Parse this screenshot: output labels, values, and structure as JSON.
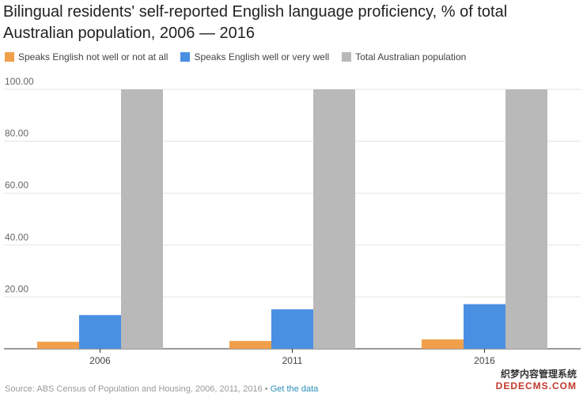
{
  "chart_data": {
    "type": "bar",
    "title": "Bilingual residents' self-reported English language proficiency, % of total Australian population, 2006 — 2016",
    "categories": [
      "2006",
      "2011",
      "2016"
    ],
    "series": [
      {
        "name": "Speaks English not well or not at all",
        "color": "#f0a04b",
        "values": [
          2.7,
          3.0,
          3.6
        ]
      },
      {
        "name": "Speaks English well or very well",
        "color": "#4a90e2",
        "values": [
          13.0,
          15.2,
          17.2
        ]
      },
      {
        "name": "Total Australian population",
        "color": "#b9b9b9",
        "values": [
          100,
          100,
          100
        ]
      }
    ],
    "ylim": [
      0,
      100
    ],
    "yticks": [
      "20.00",
      "40.00",
      "60.00",
      "80.00",
      "100.00"
    ],
    "ytick_values": [
      20,
      40,
      60,
      80,
      100
    ],
    "grid": true,
    "legend_position": "top-left",
    "xlabel": "",
    "ylabel": ""
  },
  "footer": {
    "source": "Source: ABS Census of Population and Housing, 2006, 2011, 2016 • ",
    "link": "Get the data"
  },
  "watermark": {
    "line1": "织梦内容管理系统",
    "line2": "DEDECMS.COM"
  }
}
